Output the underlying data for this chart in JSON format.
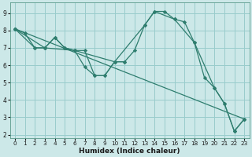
{
  "xlabel": "Humidex (Indice chaleur)",
  "bg_color": "#cce8e8",
  "grid_color": "#99cccc",
  "line_color": "#2e7d6e",
  "xlim": [
    -0.5,
    23.5
  ],
  "ylim": [
    1.8,
    9.6
  ],
  "xticks": [
    0,
    1,
    2,
    3,
    4,
    5,
    6,
    7,
    8,
    9,
    10,
    11,
    12,
    13,
    14,
    15,
    16,
    17,
    18,
    19,
    20,
    21,
    22,
    23
  ],
  "yticks": [
    2,
    3,
    4,
    5,
    6,
    7,
    8,
    9
  ],
  "series": [
    {
      "x": [
        0,
        1,
        2,
        3,
        4,
        5,
        6,
        7,
        8,
        9,
        10,
        11,
        12,
        13,
        14,
        15,
        16,
        17,
        18,
        19,
        20,
        21,
        22,
        23
      ],
      "y": [
        8.1,
        7.85,
        7.0,
        7.0,
        7.6,
        7.0,
        6.85,
        5.9,
        5.4,
        5.4,
        6.2,
        6.2,
        6.85,
        8.3,
        9.1,
        9.1,
        8.65,
        8.5,
        7.3,
        5.3,
        4.7,
        3.8,
        2.2,
        2.9
      ]
    },
    {
      "x": [
        0,
        23
      ],
      "y": [
        8.1,
        2.9
      ]
    },
    {
      "x": [
        0,
        3,
        6,
        10,
        13,
        14,
        16,
        18,
        20,
        21,
        22,
        23
      ],
      "y": [
        8.1,
        7.0,
        6.85,
        6.2,
        8.3,
        9.1,
        8.65,
        7.3,
        4.7,
        3.8,
        2.2,
        2.9
      ]
    },
    {
      "comment": "shorter curve: 0,8.1 to ~4,7.6 to ~10,6.2 ends around 10-11",
      "x": [
        0,
        2,
        3,
        4,
        5,
        6,
        7,
        8,
        9,
        10,
        11
      ],
      "y": [
        8.1,
        7.0,
        7.0,
        7.6,
        7.0,
        6.85,
        6.85,
        5.4,
        5.4,
        6.2,
        6.2
      ]
    }
  ]
}
